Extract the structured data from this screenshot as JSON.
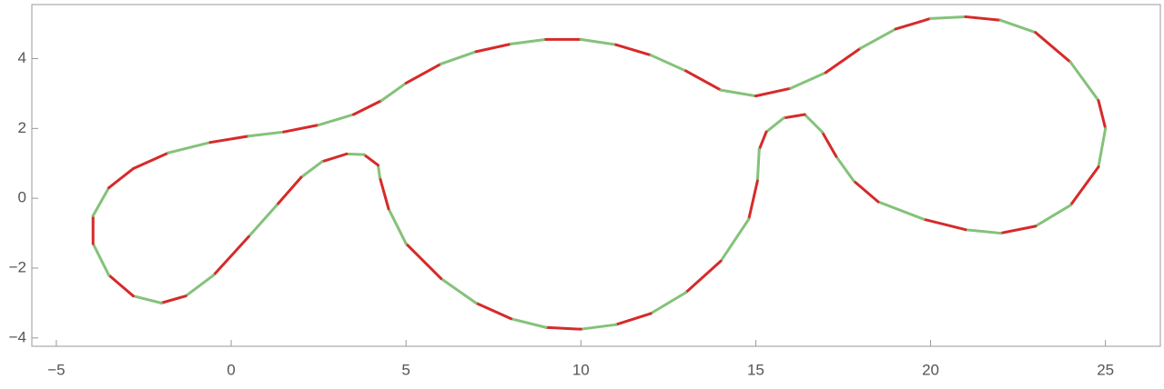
{
  "chart_data": {
    "type": "parametric",
    "x": [
      -2.8,
      -1.8,
      -0.6,
      0.5,
      1.5,
      2.5,
      3.5,
      4.3,
      5,
      6,
      7,
      8,
      9,
      10,
      11,
      12,
      13,
      14,
      15,
      16,
      17,
      18,
      19,
      20,
      21,
      22,
      23,
      24,
      24.8,
      25,
      24.8,
      24,
      23,
      22,
      21,
      19.8,
      18.5,
      17.8,
      17.3,
      16.9,
      16.4,
      15.8,
      15.3,
      15.1,
      15.05,
      14.8,
      14,
      13,
      12,
      11,
      10,
      9,
      8,
      7,
      6,
      5,
      4.5,
      4.25,
      4.2,
      3.8,
      3.3,
      2.6,
      2,
      1.3,
      0.5,
      -0.5,
      -1.3,
      -2,
      -2.8,
      -3.5,
      -3.95,
      -3.95,
      -3.5
    ],
    "y": [
      0.85,
      1.3,
      1.6,
      1.78,
      1.9,
      2.1,
      2.4,
      2.8,
      3.3,
      3.85,
      4.2,
      4.42,
      4.55,
      4.55,
      4.4,
      4.1,
      3.65,
      3.1,
      2.93,
      3.15,
      3.6,
      4.3,
      4.85,
      5.15,
      5.2,
      5.1,
      4.75,
      3.9,
      2.8,
      2,
      0.9,
      -0.2,
      -0.8,
      -1,
      -0.9,
      -0.6,
      -0.1,
      0.5,
      1.2,
      1.9,
      2.4,
      2.3,
      1.9,
      1.4,
      0.5,
      -0.6,
      -1.8,
      -2.7,
      -3.3,
      -3.62,
      -3.75,
      -3.7,
      -3.45,
      -3,
      -2.3,
      -1.3,
      -0.3,
      0.6,
      0.95,
      1.25,
      1.27,
      1.05,
      0.6,
      -0.2,
      -1.1,
      -2.2,
      -2.8,
      -3,
      -2.8,
      -2.2,
      -1.3,
      -0.5,
      0.3
    ],
    "colors": [
      "#d62a2a",
      "#84c27a"
    ],
    "closed": true,
    "xlim": [
      -5.7,
      26.57
    ],
    "ylim": [
      -4.24,
      5.55
    ],
    "xticks": [
      {
        "value": -5,
        "label": "−5"
      },
      0,
      5,
      10,
      15,
      20,
      25
    ],
    "yticks": [
      {
        "value": -4,
        "label": "−4"
      },
      {
        "value": -2,
        "label": "−2"
      },
      0,
      2,
      4
    ]
  }
}
